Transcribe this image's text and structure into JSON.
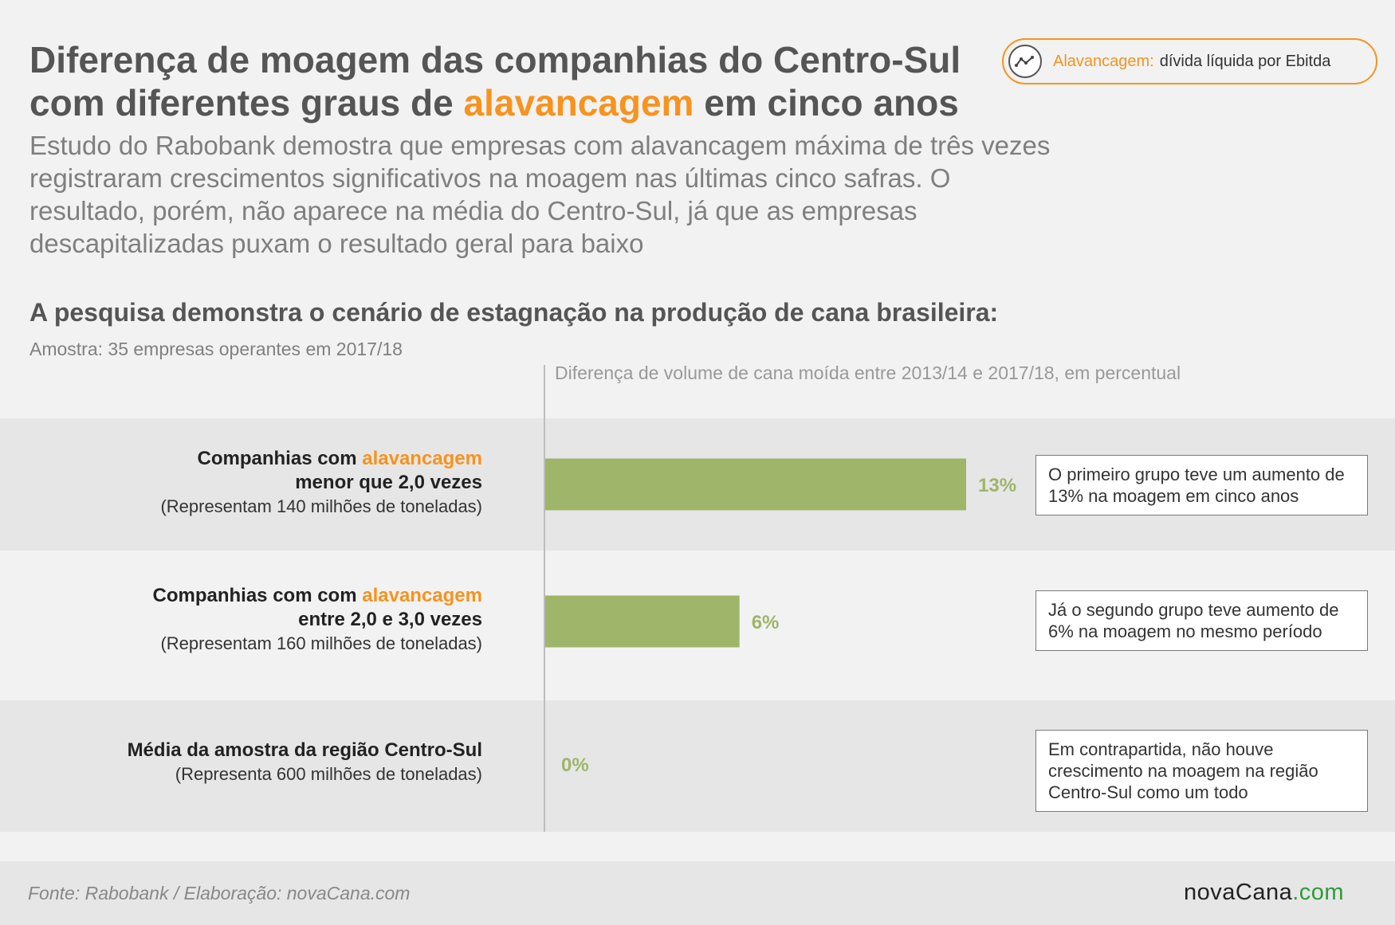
{
  "header": {
    "title_part1": "Diferença de moagem das companhias do Centro-Sul com diferentes graus de ",
    "title_accent": "alavancagem",
    "title_part2": " em cinco anos",
    "subtitle": "Estudo do Rabobank demostra que empresas com alavancagem máxima de três vezes registraram crescimentos significativos na moagem nas últimas cinco safras. O resultado, porém, não aparece na média do Centro-Sul, já que as empresas descapitalizadas puxam o resultado geral para baixo"
  },
  "legend": {
    "term": "Alavancagem:",
    "definition": "dívida líquida por Ebitda",
    "icon": "line-chart-icon"
  },
  "section": {
    "heading": "A pesquisa demonstra o cenário de estagnação na produção de cana brasileira:",
    "sample_note": "Amostra: 35 empresas operantes em 2017/18",
    "axis_caption": "Diferença de volume de cana moída entre 2013/14 e 2017/18, em percentual"
  },
  "rows": [
    {
      "label_prefix": "Companhias com ",
      "label_accent": "alavancagem",
      "label_line2": "menor que 2,0 vezes",
      "label_sub": "(Representam 140 milhões de toneladas)",
      "value_label": "13%",
      "callout": "O primeiro grupo teve um aumento de 13% na moagem em cinco anos"
    },
    {
      "label_prefix": "Companhias com com ",
      "label_accent": "alavancagem",
      "label_line2": "entre 2,0 e 3,0 vezes",
      "label_sub": "(Representam 160 milhões de toneladas)",
      "value_label": "6%",
      "callout": "Já o segundo grupo teve aumento de 6% na moagem no mesmo período"
    },
    {
      "label_prefix": "Média da amostra da região Centro-Sul",
      "label_accent": "",
      "label_line2": "",
      "label_sub": "(Representa 600 milhões de toneladas)",
      "value_label": "0%",
      "callout": "Em contrapartida, não houve crescimento na moagem na região Centro-Sul como um todo"
    }
  ],
  "chart_data": {
    "type": "bar",
    "orientation": "horizontal",
    "categories": [
      "Companhias com alavancagem menor que 2,0 vezes",
      "Companhias com com alavancagem entre 2,0 e 3,0 vezes",
      "Média da amostra da região Centro-Sul"
    ],
    "values": [
      13,
      6,
      0
    ],
    "value_labels": [
      "13%",
      "6%",
      "0%"
    ],
    "xlabel": "Diferença de volume de cana moída entre 2013/14 e 2017/18, em percentual",
    "xlim": [
      0,
      13
    ],
    "grid": false,
    "colors": {
      "bar": "#9fb56a",
      "value_label": "#9fb56a",
      "accent": "#f7931e"
    }
  },
  "footer": {
    "source": "Fonte: Rabobank / Elaboração: novaCana.com",
    "logo_dark": "novaCana",
    "logo_green": ".com"
  }
}
